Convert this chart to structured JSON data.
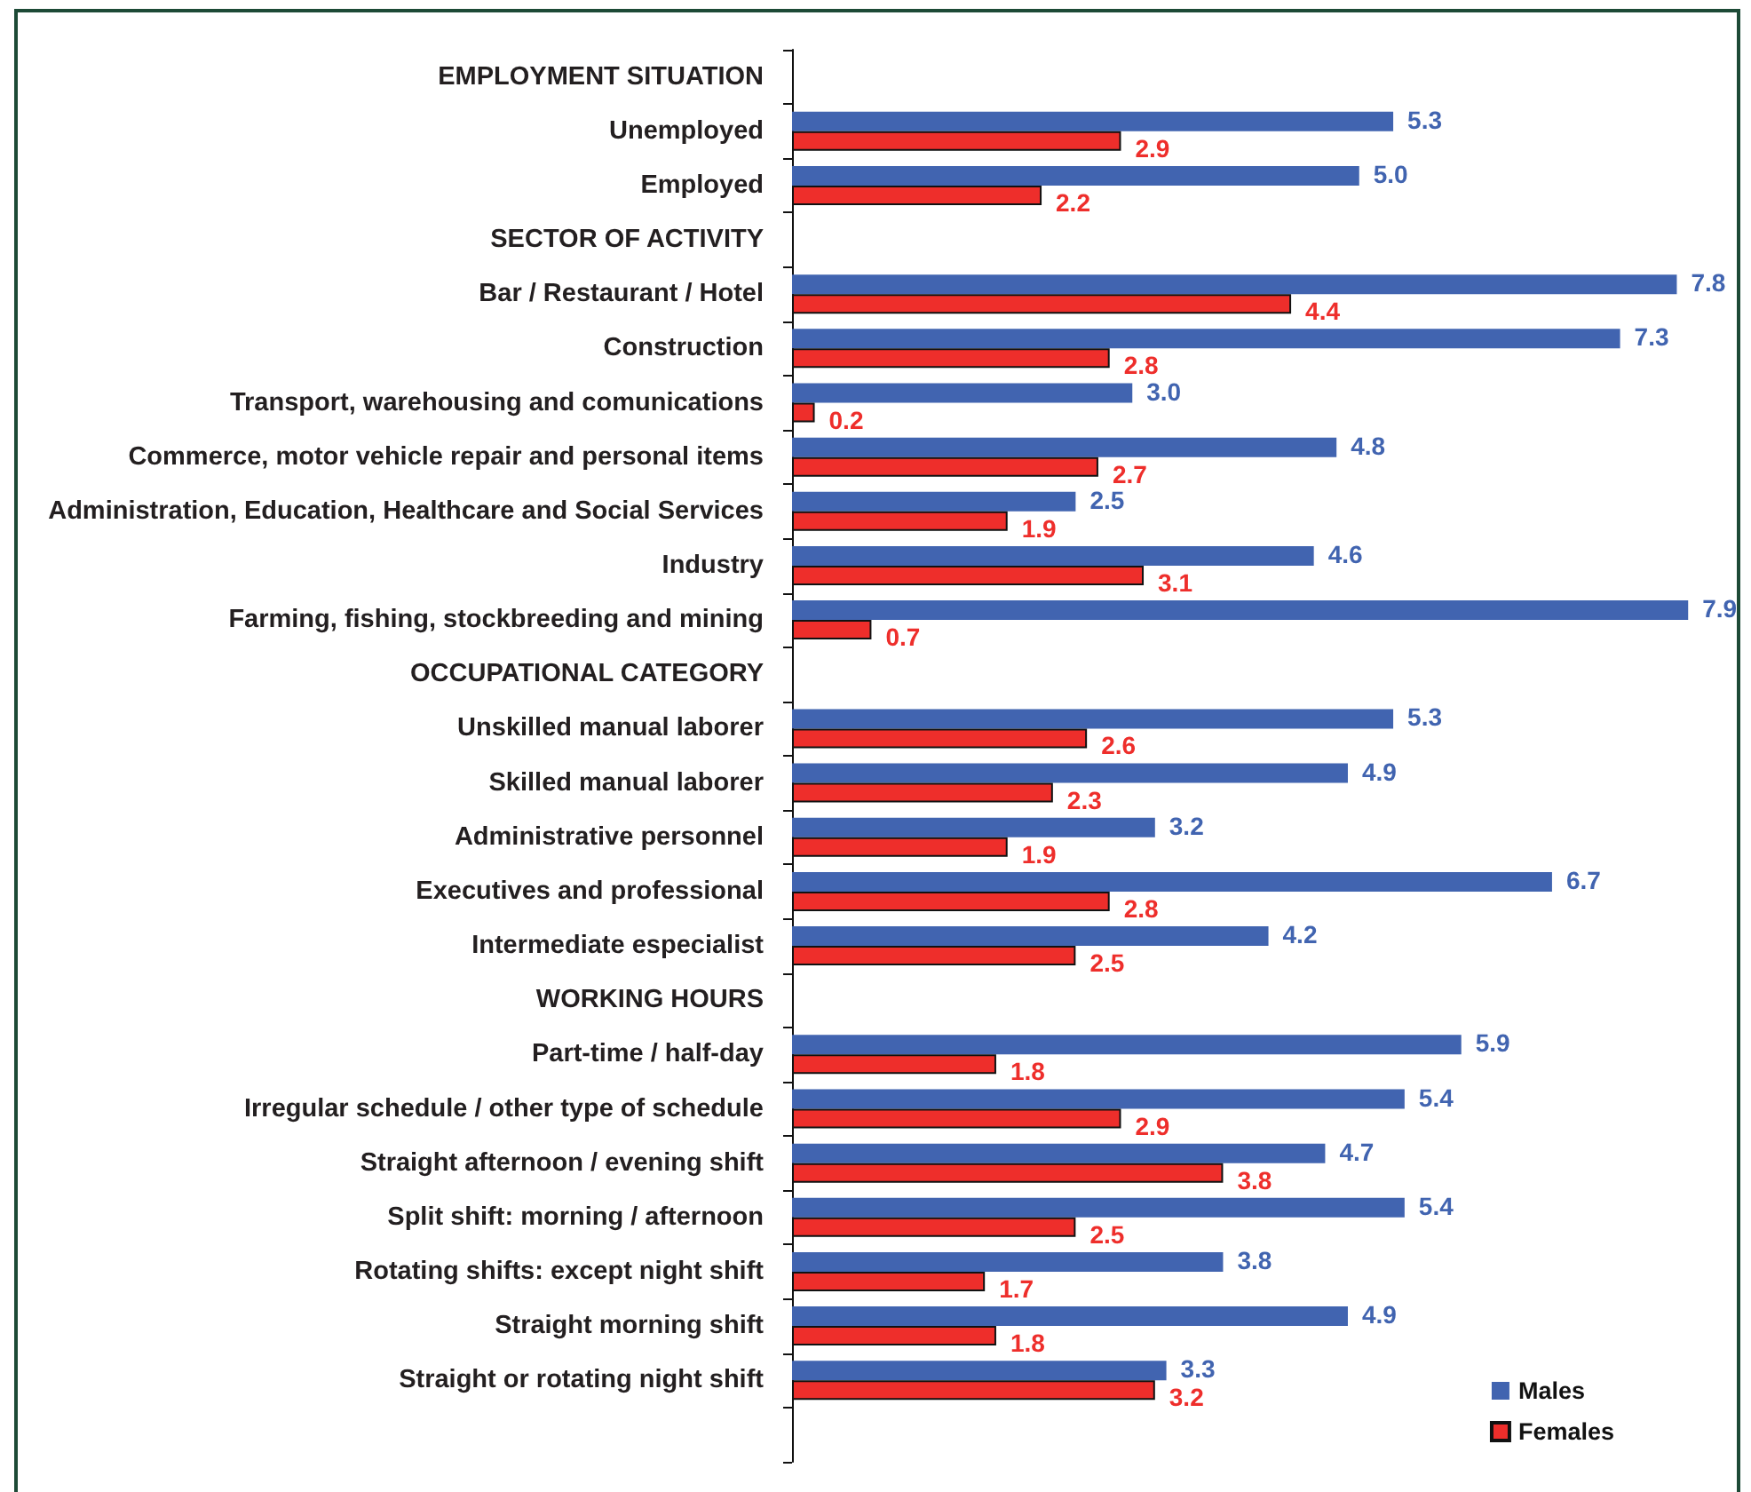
{
  "chart_data": {
    "type": "bar",
    "orientation": "horizontal",
    "categories": [
      "EMPLOYMENT SITUATION",
      "Unemployed",
      "Employed",
      "SECTOR OF ACTIVITY",
      "Bar / Restaurant / Hotel",
      "Construction",
      "Transport, warehousing and comunications",
      "Commerce, motor vehicle repair and personal items",
      "Administration, Education, Healthcare and Social Services",
      "Industry",
      "Farming, fishing, stockbreeding and mining",
      "OCCUPATIONAL CATEGORY",
      "Unskilled manual laborer",
      "Skilled manual laborer",
      "Administrative personnel",
      "Executives and professional",
      "Intermediate especialist",
      "WORKING HOURS",
      "Part-time / half-day",
      "Irregular schedule / other type of schedule",
      "Straight afternoon / evening shift",
      "Split shift: morning / afternoon",
      "Rotating shifts: except night shift",
      "Straight morning shift",
      "Straight or rotating night shift",
      null
    ],
    "series": [
      {
        "name": "Males",
        "color": "#4164b0",
        "values": [
          null,
          5.3,
          5.0,
          null,
          7.8,
          7.3,
          3.0,
          4.8,
          2.5,
          4.6,
          7.9,
          null,
          5.3,
          4.9,
          3.2,
          6.7,
          4.2,
          null,
          5.9,
          5.4,
          4.7,
          5.4,
          3.8,
          4.9,
          3.3,
          null
        ],
        "value_labels": [
          null,
          "5.3",
          "5.0",
          null,
          "7.8",
          "7.3",
          "3.0",
          "4.8",
          "2.5",
          "4.6",
          "7.9",
          null,
          "5.3",
          "4.9",
          "3.2",
          "6.7",
          "4.2",
          null,
          "5.9",
          "5.4",
          "4.7",
          "5.4",
          "3.8",
          "4.9",
          "3.3",
          null
        ]
      },
      {
        "name": "Females",
        "color": "#ee2e2b",
        "values": [
          null,
          2.9,
          2.2,
          null,
          4.4,
          2.8,
          0.2,
          2.7,
          1.9,
          3.1,
          0.7,
          null,
          2.6,
          2.3,
          1.9,
          2.8,
          2.5,
          null,
          1.8,
          2.9,
          3.8,
          2.5,
          1.7,
          1.8,
          3.2,
          null
        ],
        "value_labels": [
          null,
          "2.9",
          "2.2",
          null,
          "4.4",
          "2.8",
          "0.2",
          "2.7",
          "1.9",
          "3.1",
          "0.7",
          null,
          "2.6",
          "2.3",
          "1.9",
          "2.8",
          "2.5",
          null,
          "1.8",
          "2.9",
          "3.8",
          "2.5",
          "1.7",
          "1.8",
          "3.2",
          null
        ]
      }
    ],
    "legend": "bottom right"
  }
}
